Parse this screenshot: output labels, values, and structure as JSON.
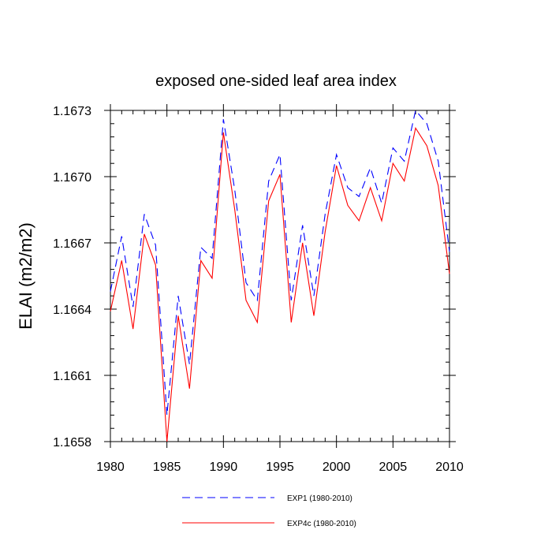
{
  "chart_data": {
    "type": "line",
    "title": "exposed one-sided leaf area index",
    "xlabel": "",
    "ylabel": "ELAI  (m2/m2)",
    "xlim": [
      1980,
      2010
    ],
    "ylim": [
      1.1658,
      1.1673
    ],
    "x_ticks": [
      1980,
      1985,
      1990,
      1995,
      2000,
      2005,
      2010
    ],
    "x_tick_labels": [
      "1980",
      "1985",
      "1990",
      "1995",
      "2000",
      "2005",
      "2010"
    ],
    "y_ticks": [
      1.1658,
      1.1661,
      1.1664,
      1.1667,
      1.167,
      1.1673
    ],
    "y_tick_labels": [
      "1.1658",
      "1.1661",
      "1.1664",
      "1.1667",
      "1.1670",
      "1.1673"
    ],
    "grid": false,
    "legend_position": "bottom",
    "x": [
      1980,
      1981,
      1982,
      1983,
      1984,
      1985,
      1986,
      1987,
      1988,
      1989,
      1990,
      1991,
      1992,
      1993,
      1994,
      1995,
      1996,
      1997,
      1998,
      1999,
      2000,
      2001,
      2002,
      2003,
      2004,
      2005,
      2006,
      2007,
      2008,
      2009,
      2010
    ],
    "series": [
      {
        "name": "EXP1 (1980-2010)",
        "color": "#0000ff",
        "dash": "dashed",
        "values": [
          1.16648,
          1.16673,
          1.16641,
          1.16683,
          1.16669,
          1.16592,
          1.16646,
          1.16615,
          1.16668,
          1.16663,
          1.16726,
          1.16694,
          1.16652,
          1.16644,
          1.16698,
          1.1671,
          1.16644,
          1.16678,
          1.16646,
          1.16683,
          1.1671,
          1.16695,
          1.16691,
          1.16704,
          1.16688,
          1.16713,
          1.16707,
          1.1673,
          1.16724,
          1.16707,
          1.16666
        ]
      },
      {
        "name": "EXP4c (1980-2010)",
        "color": "#ff0000",
        "dash": "solid",
        "values": [
          1.16639,
          1.16662,
          1.16631,
          1.16674,
          1.1666,
          1.1658,
          1.16637,
          1.16604,
          1.16662,
          1.16654,
          1.1672,
          1.16685,
          1.16644,
          1.16634,
          1.16689,
          1.16701,
          1.16634,
          1.1667,
          1.16637,
          1.16675,
          1.16705,
          1.16687,
          1.1668,
          1.16695,
          1.1668,
          1.16706,
          1.16698,
          1.16722,
          1.16714,
          1.16696,
          1.16656
        ]
      }
    ]
  }
}
